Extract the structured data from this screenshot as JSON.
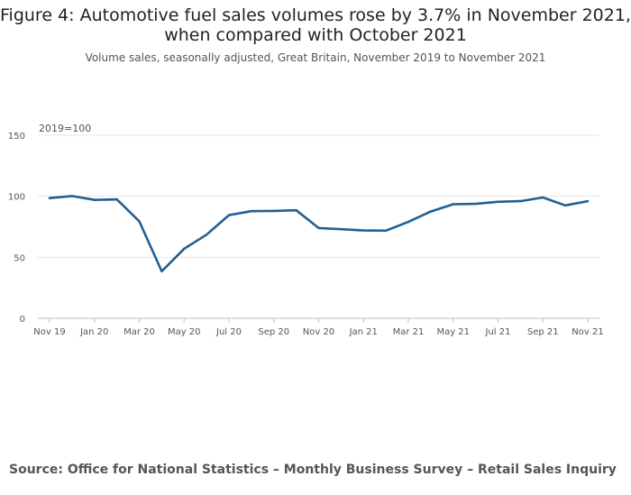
{
  "title_line1": "Figure 4: Automotive fuel sales volumes rose by 3.7% in November 2021,",
  "title_line2": "when compared with October 2021",
  "subtitle": "Volume sales, seasonally adjusted, Great Britain, November 2019 to November 2021",
  "source": "Source: Office for National Statistics – Monthly Business Survey – Retail Sales Inquiry",
  "colors": {
    "line": "#206095",
    "grid": "#e6e6e6",
    "axis": "#bfbfbf"
  },
  "chart_data": {
    "type": "line",
    "title": "Figure 4: Automotive fuel sales volumes rose by 3.7% in November 2021, when compared with October 2021",
    "subtitle": "Volume sales, seasonally adjusted, Great Britain, November 2019 to November 2021",
    "unit_label": "2019=100",
    "x": [
      "Nov 19",
      "Dec 19",
      "Jan 20",
      "Feb 20",
      "Mar 20",
      "Apr 20",
      "May 20",
      "Jun 20",
      "Jul 20",
      "Aug 20",
      "Sep 20",
      "Oct 20",
      "Nov 20",
      "Dec 20",
      "Jan 21",
      "Feb 21",
      "Mar 21",
      "Apr 21",
      "May 21",
      "Jun 21",
      "Jul 21",
      "Aug 21",
      "Sep 21",
      "Oct 21",
      "Nov 21"
    ],
    "x_tick_labels": [
      "Nov 19",
      "Jan 20",
      "Mar 20",
      "May 20",
      "Jul 20",
      "Sep 20",
      "Nov 20",
      "Jan 21",
      "Mar 21",
      "May 21",
      "Jul 21",
      "Sep 21",
      "Nov 21"
    ],
    "series": [
      {
        "values": [
          98.5,
          100.2,
          97.0,
          97.5,
          79.5,
          38.5,
          57.0,
          68.5,
          84.5,
          87.8,
          88.0,
          88.5,
          74.0,
          73.0,
          72.0,
          71.8,
          79.0,
          87.5,
          93.5,
          93.8,
          95.5,
          96.0,
          99.0,
          92.5,
          96.0
        ]
      }
    ],
    "ylim": [
      0,
      150
    ],
    "y_ticks": [
      0,
      50,
      100,
      150
    ],
    "grid": true,
    "legend": "none"
  }
}
